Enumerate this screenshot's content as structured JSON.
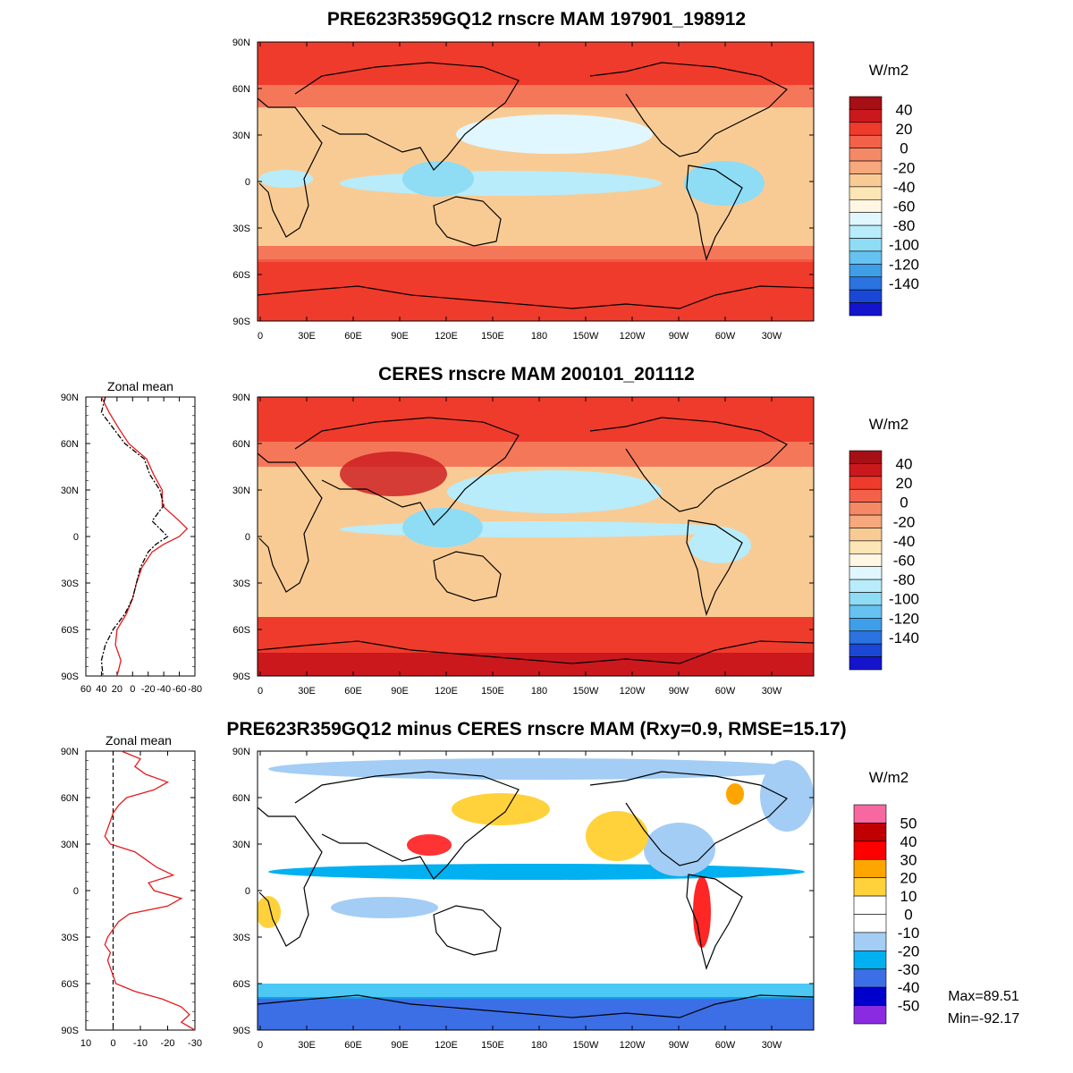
{
  "colors": {
    "ocean_bg": "#f9cb94",
    "coast": "#000000",
    "model_line": "#000000",
    "obs_line": "#e41a1c",
    "diff_line": "#e41a1c"
  },
  "chart_data": [
    {
      "id": "model",
      "type": "heatmap",
      "title": "PRE623R359GQ12 rnscre MAM 197901_198912",
      "units": "W/m2",
      "lat_ticks": [
        "90N",
        "60N",
        "30N",
        "0",
        "30S",
        "60S",
        "90S"
      ],
      "lon_ticks": [
        "0",
        "30E",
        "60E",
        "90E",
        "120E",
        "150E",
        "180",
        "150W",
        "120W",
        "90W",
        "60W",
        "30W"
      ],
      "colorbar_labels": [
        "40",
        "20",
        "0",
        "-20",
        "-40",
        "-60",
        "-80",
        "-100",
        "-120",
        "-140"
      ],
      "colorbar_colors": [
        "#a50f15",
        "#cb181d",
        "#ef3b2c",
        "#f4614a",
        "#f58966",
        "#f7a87c",
        "#f9cb94",
        "#fde6b5",
        "#fff7e3",
        "#e0f7ff",
        "#b8ecfa",
        "#8fdcf5",
        "#66c2f0",
        "#3f9ee8",
        "#2a73e0",
        "#1b47d6",
        "#1414cc"
      ],
      "zonal_lat": [
        90,
        80,
        70,
        60,
        50,
        40,
        30,
        20,
        10,
        5,
        0,
        -5,
        -10,
        -20,
        -30,
        -40,
        -50,
        -60,
        -70,
        -80,
        -90
      ],
      "zonal_values": [
        35,
        40,
        25,
        10,
        -15,
        -22,
        -35,
        -40,
        -25,
        -35,
        -45,
        -30,
        -20,
        -10,
        -5,
        0,
        10,
        25,
        35,
        40,
        38
      ]
    },
    {
      "id": "obs",
      "type": "heatmap",
      "title": "CERES rnscre MAM 200101_201112",
      "units": "W/m2",
      "lat_ticks": [
        "90N",
        "60N",
        "30N",
        "0",
        "30S",
        "60S",
        "90S"
      ],
      "lon_ticks": [
        "0",
        "30E",
        "60E",
        "90E",
        "120E",
        "150E",
        "180",
        "150W",
        "120W",
        "90W",
        "60W",
        "30W"
      ],
      "colorbar_labels": [
        "40",
        "20",
        "0",
        "-20",
        "-40",
        "-60",
        "-80",
        "-100",
        "-120",
        "-140"
      ],
      "colorbar_colors": [
        "#a50f15",
        "#cb181d",
        "#ef3b2c",
        "#f4614a",
        "#f58966",
        "#f7a87c",
        "#f9cb94",
        "#fde6b5",
        "#fff7e3",
        "#e0f7ff",
        "#b8ecfa",
        "#8fdcf5",
        "#66c2f0",
        "#3f9ee8",
        "#2a73e0",
        "#1b47d6",
        "#1414cc"
      ],
      "zonal_title": "Zonal mean",
      "zonal_xticks": [
        "60",
        "40",
        "20",
        "0",
        "-20",
        "-40",
        "-60",
        "-80"
      ],
      "zonal_xlim": [
        60,
        -80
      ],
      "zonal_lat": [
        90,
        80,
        70,
        60,
        50,
        40,
        30,
        20,
        10,
        5,
        0,
        -5,
        -10,
        -20,
        -30,
        -40,
        -50,
        -60,
        -70,
        -80,
        -90
      ],
      "zonal_model": [
        35,
        40,
        25,
        10,
        -15,
        -22,
        -35,
        -40,
        -25,
        -35,
        -45,
        -30,
        -20,
        -10,
        -5,
        0,
        10,
        25,
        35,
        40,
        38
      ],
      "zonal_obs": [
        40,
        30,
        18,
        5,
        -18,
        -27,
        -38,
        -38,
        -60,
        -70,
        -60,
        -40,
        -25,
        -12,
        -5,
        0,
        8,
        20,
        22,
        15,
        20
      ]
    },
    {
      "id": "diff",
      "type": "heatmap",
      "title": "PRE623R359GQ12 minus CERES rnscre MAM (Rxy=0.9, RMSE=15.17)",
      "units": "W/m2",
      "lat_ticks": [
        "90N",
        "60N",
        "30N",
        "0",
        "30S",
        "60S",
        "90S"
      ],
      "lon_ticks": [
        "0",
        "30E",
        "60E",
        "90E",
        "120E",
        "150E",
        "180",
        "150W",
        "120W",
        "90W",
        "60W",
        "30W"
      ],
      "colorbar_labels": [
        "50",
        "40",
        "30",
        "20",
        "10",
        "0",
        "-10",
        "-20",
        "-30",
        "-40",
        "-50"
      ],
      "colorbar_colors": [
        "#f768a1",
        "#c00000",
        "#ff0000",
        "#ffa500",
        "#ffd23c",
        "#ffffff",
        "#ffffff",
        "#a3cdf5",
        "#00b0f0",
        "#3c6ee6",
        "#0000cd",
        "#8a2be2"
      ],
      "zonal_title": "Zonal mean",
      "zonal_xticks": [
        "10",
        "0",
        "-10",
        "-20",
        "-30"
      ],
      "zonal_xlim": [
        10,
        -30
      ],
      "zonal_lat": [
        90,
        85,
        80,
        75,
        70,
        65,
        60,
        55,
        50,
        45,
        40,
        35,
        30,
        25,
        20,
        15,
        10,
        5,
        0,
        -5,
        -10,
        -15,
        -20,
        -25,
        -30,
        -35,
        -40,
        -45,
        -50,
        -55,
        -60,
        -65,
        -70,
        -75,
        -80,
        -85,
        -90
      ],
      "zonal_values": [
        -3,
        -10,
        -8,
        -12,
        -20,
        -15,
        -5,
        -2,
        0,
        1,
        2,
        3,
        1,
        -8,
        -12,
        -16,
        -22,
        -13,
        -15,
        -25,
        -20,
        -6,
        -2,
        0,
        2,
        3,
        1,
        2,
        1,
        0,
        -1,
        -8,
        -18,
        -25,
        -28,
        -25,
        -30
      ],
      "stat_max": "Max=89.51",
      "stat_min": "Min=-92.17"
    }
  ]
}
